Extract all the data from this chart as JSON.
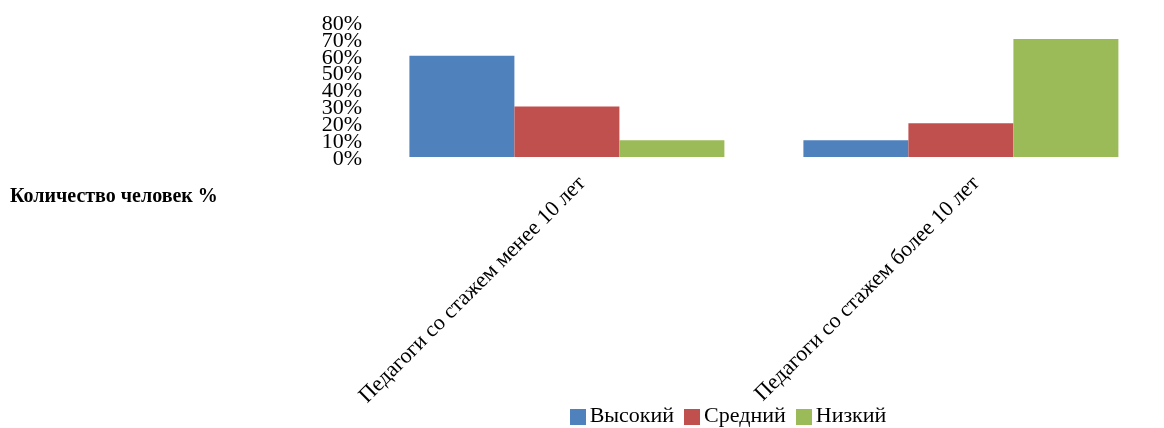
{
  "chart_data": {
    "type": "bar",
    "annotations": [
      "Количество человек %"
    ],
    "categories": [
      "Педагоги со стажем менее 10 лет",
      "Педагоги со стажем более 10 лет"
    ],
    "series": [
      {
        "name": "Высокий",
        "color": "#4f81bd",
        "values": [
          60,
          10
        ]
      },
      {
        "name": "Средний",
        "color": "#c0504d",
        "values": [
          30,
          20
        ]
      },
      {
        "name": "Низкий",
        "color": "#9bbb59",
        "values": [
          10,
          70
        ]
      }
    ],
    "ylim": [
      0,
      80
    ],
    "yticks": [
      {
        "value": 0,
        "label": "0%"
      },
      {
        "value": 10,
        "label": "10%"
      },
      {
        "value": 20,
        "label": "20%"
      },
      {
        "value": 30,
        "label": "30%"
      },
      {
        "value": 40,
        "label": "40%"
      },
      {
        "value": 50,
        "label": "50%"
      },
      {
        "value": 60,
        "label": "60%"
      },
      {
        "value": 70,
        "label": "70%"
      },
      {
        "value": 80,
        "label": "80%"
      }
    ],
    "grid": false,
    "legend": "bottom"
  }
}
